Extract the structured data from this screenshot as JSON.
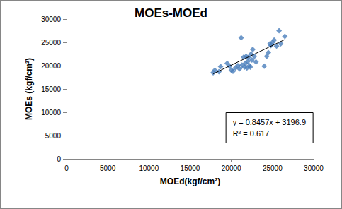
{
  "chart_data": {
    "type": "scatter",
    "title": "MOEs-MOEd",
    "x_label": "MOEd(kgf/cm²)",
    "y_label": "MOEs (kgf/cm²)",
    "x": [
      17800,
      18000,
      18500,
      18700,
      19500,
      19800,
      20000,
      20200,
      20500,
      20800,
      21000,
      21200,
      21300,
      21500,
      21600,
      21700,
      21800,
      21900,
      22000,
      22100,
      22200,
      22300,
      22400,
      22500,
      22600,
      22800,
      23000,
      24000,
      24300,
      24500,
      24700,
      24800,
      25000,
      25200,
      25500,
      25800,
      26000,
      26500
    ],
    "values": [
      18500,
      19000,
      18700,
      19800,
      20500,
      19900,
      19000,
      18800,
      19500,
      20000,
      19300,
      26000,
      20100,
      21800,
      19700,
      20500,
      22000,
      19500,
      20900,
      21800,
      20000,
      19700,
      22500,
      21200,
      23500,
      22000,
      20800,
      19900,
      22000,
      22800,
      24700,
      24300,
      25000,
      25500,
      24200,
      27500,
      24700,
      26300
    ],
    "color": "#4a7ebb",
    "marker": "diamond",
    "trendline": {
      "slope": 0.8457,
      "intercept": 3196.9,
      "color": "#000000"
    },
    "annotations": [
      "y = 0.8457x + 3196.9",
      "R² = 0.617"
    ],
    "xlim": [
      0,
      30000
    ],
    "xticks": [
      0,
      5000,
      10000,
      15000,
      20000,
      25000,
      30000
    ],
    "ylim": [
      0,
      30000
    ],
    "yticks": [
      0,
      5000,
      10000,
      15000,
      20000,
      25000,
      30000
    ],
    "grid": false
  }
}
